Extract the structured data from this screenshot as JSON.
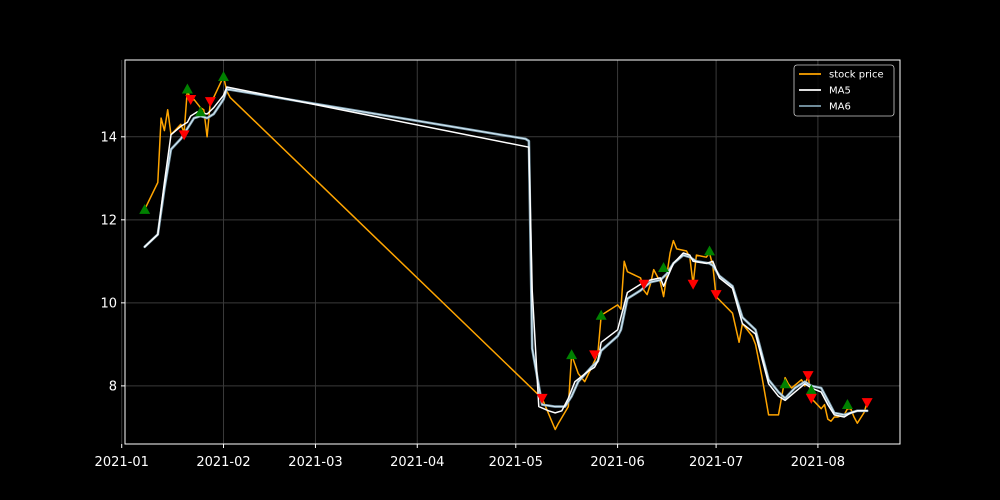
{
  "colors": {
    "background": "#000000",
    "axes": "#ffffff",
    "grid": "#3a3a3a",
    "price": "#ffa500",
    "ma5": "#ffffff",
    "ma6": "#7f9faf",
    "ma6_inner": "#d8ecf8",
    "buy_marker": "#008000",
    "sell_marker": "#ff0000"
  },
  "chart_data": {
    "type": "line",
    "title": "",
    "xlabel": "",
    "ylabel": "",
    "grid": true,
    "legend_position": "top-right",
    "x_axis": {
      "type": "date",
      "range": [
        "2021-01-02",
        "2021-08-26"
      ],
      "ticks": [
        "2021-01-01",
        "2021-02-01",
        "2021-03-01",
        "2021-04-01",
        "2021-05-01",
        "2021-06-01",
        "2021-07-01",
        "2021-08-01"
      ],
      "tick_labels": [
        "2021-01",
        "2021-02",
        "2021-03",
        "2021-04",
        "2021-05",
        "2021-06",
        "2021-07",
        "2021-08"
      ]
    },
    "y_axis": {
      "range": [
        6.6,
        15.85
      ],
      "ticks": [
        8,
        10,
        12,
        14
      ],
      "tick_labels": [
        "8",
        "10",
        "12",
        "14"
      ]
    },
    "legend": [
      {
        "label": "stock price",
        "series": "price"
      },
      {
        "label": "MA5",
        "series": "ma5"
      },
      {
        "label": "MA6",
        "series": "ma6"
      }
    ],
    "series": [
      {
        "id": "price",
        "name": "stock price",
        "points": [
          [
            "2021-01-08",
            12.25
          ],
          [
            "2021-01-12",
            12.9
          ],
          [
            "2021-01-13",
            14.45
          ],
          [
            "2021-01-14",
            14.15
          ],
          [
            "2021-01-15",
            14.65
          ],
          [
            "2021-01-16",
            14.05
          ],
          [
            "2021-01-19",
            14.3
          ],
          [
            "2021-01-20",
            14.1
          ],
          [
            "2021-01-21",
            15.15
          ],
          [
            "2021-01-22",
            14.85
          ],
          [
            "2021-01-23",
            14.9
          ],
          [
            "2021-01-25",
            14.7
          ],
          [
            "2021-01-26",
            14.65
          ],
          [
            "2021-01-27",
            14.0
          ],
          [
            "2021-01-28",
            14.85
          ],
          [
            "2021-01-29",
            14.95
          ],
          [
            "2021-02-01",
            15.45
          ],
          [
            "2021-02-02",
            15.1
          ],
          [
            "2021-02-03",
            14.95
          ],
          [
            "2021-05-09",
            7.7
          ],
          [
            "2021-05-13",
            6.95
          ],
          [
            "2021-05-14",
            7.1
          ],
          [
            "2021-05-17",
            7.5
          ],
          [
            "2021-05-18",
            8.75
          ],
          [
            "2021-05-20",
            8.3
          ],
          [
            "2021-05-22",
            8.1
          ],
          [
            "2021-05-25",
            8.6
          ],
          [
            "2021-05-26",
            8.8
          ],
          [
            "2021-05-27",
            9.7
          ],
          [
            "2021-06-01",
            9.95
          ],
          [
            "2021-06-02",
            9.85
          ],
          [
            "2021-06-03",
            11.0
          ],
          [
            "2021-06-04",
            10.75
          ],
          [
            "2021-06-08",
            10.6
          ],
          [
            "2021-06-09",
            10.3
          ],
          [
            "2021-06-10",
            10.2
          ],
          [
            "2021-06-11",
            10.45
          ],
          [
            "2021-06-12",
            10.8
          ],
          [
            "2021-06-14",
            10.5
          ],
          [
            "2021-06-15",
            10.15
          ],
          [
            "2021-06-17",
            11.2
          ],
          [
            "2021-06-18",
            11.5
          ],
          [
            "2021-06-19",
            11.3
          ],
          [
            "2021-06-22",
            11.25
          ],
          [
            "2021-06-23",
            11.1
          ],
          [
            "2021-06-24",
            10.45
          ],
          [
            "2021-06-25",
            11.15
          ],
          [
            "2021-06-28",
            11.1
          ],
          [
            "2021-06-29",
            11.2
          ],
          [
            "2021-06-30",
            10.9
          ],
          [
            "2021-07-01",
            10.15
          ],
          [
            "2021-07-06",
            9.75
          ],
          [
            "2021-07-08",
            9.05
          ],
          [
            "2021-07-09",
            9.5
          ],
          [
            "2021-07-12",
            9.2
          ],
          [
            "2021-07-13",
            9.0
          ],
          [
            "2021-07-15",
            8.2
          ],
          [
            "2021-07-17",
            7.3
          ],
          [
            "2021-07-20",
            7.3
          ],
          [
            "2021-07-21",
            7.75
          ],
          [
            "2021-07-22",
            8.2
          ],
          [
            "2021-07-23",
            8.05
          ],
          [
            "2021-07-24",
            7.95
          ],
          [
            "2021-07-27",
            8.15
          ],
          [
            "2021-07-28",
            8.0
          ],
          [
            "2021-07-29",
            8.25
          ],
          [
            "2021-07-30",
            7.7
          ],
          [
            "2021-08-02",
            7.45
          ],
          [
            "2021-08-03",
            7.55
          ],
          [
            "2021-08-04",
            7.2
          ],
          [
            "2021-08-05",
            7.15
          ],
          [
            "2021-08-06",
            7.25
          ],
          [
            "2021-08-07",
            7.25
          ],
          [
            "2021-08-09",
            7.3
          ],
          [
            "2021-08-10",
            7.45
          ],
          [
            "2021-08-11",
            7.45
          ],
          [
            "2021-08-12",
            7.25
          ],
          [
            "2021-08-13",
            7.1
          ],
          [
            "2021-08-15",
            7.35
          ],
          [
            "2021-08-16",
            7.6
          ]
        ]
      },
      {
        "id": "ma6",
        "name": "MA6",
        "points": [
          [
            "2021-01-08",
            11.35
          ],
          [
            "2021-01-12",
            11.65
          ],
          [
            "2021-01-14",
            12.75
          ],
          [
            "2021-01-16",
            13.7
          ],
          [
            "2021-01-19",
            13.95
          ],
          [
            "2021-01-21",
            14.2
          ],
          [
            "2021-01-23",
            14.45
          ],
          [
            "2021-01-25",
            14.5
          ],
          [
            "2021-01-27",
            14.45
          ],
          [
            "2021-01-29",
            14.55
          ],
          [
            "2021-02-01",
            14.9
          ],
          [
            "2021-02-02",
            15.15
          ],
          [
            "2021-05-04",
            13.95
          ],
          [
            "2021-05-05",
            13.9
          ],
          [
            "2021-05-06",
            8.9
          ],
          [
            "2021-05-09",
            7.55
          ],
          [
            "2021-05-13",
            7.5
          ],
          [
            "2021-05-16",
            7.5
          ],
          [
            "2021-05-18",
            7.75
          ],
          [
            "2021-05-20",
            8.1
          ],
          [
            "2021-05-24",
            8.45
          ],
          [
            "2021-05-26",
            8.6
          ],
          [
            "2021-05-27",
            8.85
          ],
          [
            "2021-06-01",
            9.2
          ],
          [
            "2021-06-02",
            9.35
          ],
          [
            "2021-06-04",
            10.1
          ],
          [
            "2021-06-08",
            10.3
          ],
          [
            "2021-06-11",
            10.5
          ],
          [
            "2021-06-14",
            10.55
          ],
          [
            "2021-06-16",
            10.7
          ],
          [
            "2021-06-18",
            10.95
          ],
          [
            "2021-06-21",
            11.15
          ],
          [
            "2021-06-23",
            11.1
          ],
          [
            "2021-06-25",
            11.0
          ],
          [
            "2021-06-29",
            10.95
          ],
          [
            "2021-06-30",
            10.9
          ],
          [
            "2021-07-02",
            10.65
          ],
          [
            "2021-07-06",
            10.4
          ],
          [
            "2021-07-09",
            9.65
          ],
          [
            "2021-07-13",
            9.35
          ],
          [
            "2021-07-17",
            8.15
          ],
          [
            "2021-07-20",
            7.85
          ],
          [
            "2021-07-22",
            7.7
          ],
          [
            "2021-07-25",
            7.95
          ],
          [
            "2021-07-28",
            8.1
          ],
          [
            "2021-07-30",
            8.0
          ],
          [
            "2021-08-02",
            7.95
          ],
          [
            "2021-08-04",
            7.65
          ],
          [
            "2021-08-06",
            7.35
          ],
          [
            "2021-08-09",
            7.3
          ],
          [
            "2021-08-11",
            7.35
          ],
          [
            "2021-08-13",
            7.4
          ],
          [
            "2021-08-16",
            7.4
          ]
        ]
      },
      {
        "id": "ma5",
        "name": "MA5",
        "points": [
          [
            "2021-01-08",
            11.35
          ],
          [
            "2021-01-12",
            11.65
          ],
          [
            "2021-01-14",
            12.9
          ],
          [
            "2021-01-16",
            14.05
          ],
          [
            "2021-01-19",
            14.25
          ],
          [
            "2021-01-21",
            14.35
          ],
          [
            "2021-01-22",
            14.5
          ],
          [
            "2021-01-24",
            14.6
          ],
          [
            "2021-01-27",
            14.55
          ],
          [
            "2021-01-29",
            14.7
          ],
          [
            "2021-02-01",
            15.0
          ],
          [
            "2021-02-02",
            15.2
          ],
          [
            "2021-05-05",
            13.75
          ],
          [
            "2021-05-06",
            10.3
          ],
          [
            "2021-05-08",
            7.5
          ],
          [
            "2021-05-11",
            7.4
          ],
          [
            "2021-05-13",
            7.35
          ],
          [
            "2021-05-15",
            7.4
          ],
          [
            "2021-05-17",
            7.7
          ],
          [
            "2021-05-19",
            8.1
          ],
          [
            "2021-05-23",
            8.35
          ],
          [
            "2021-05-25",
            8.45
          ],
          [
            "2021-05-26",
            8.6
          ],
          [
            "2021-05-27",
            9.05
          ],
          [
            "2021-06-01",
            9.35
          ],
          [
            "2021-06-04",
            10.25
          ],
          [
            "2021-06-08",
            10.45
          ],
          [
            "2021-06-11",
            10.55
          ],
          [
            "2021-06-14",
            10.6
          ],
          [
            "2021-06-15",
            10.4
          ],
          [
            "2021-06-18",
            10.95
          ],
          [
            "2021-06-21",
            11.2
          ],
          [
            "2021-06-23",
            11.15
          ],
          [
            "2021-06-24",
            11.0
          ],
          [
            "2021-06-28",
            10.95
          ],
          [
            "2021-06-30",
            11.0
          ],
          [
            "2021-07-02",
            10.6
          ],
          [
            "2021-07-06",
            10.35
          ],
          [
            "2021-07-09",
            9.5
          ],
          [
            "2021-07-13",
            9.25
          ],
          [
            "2021-07-17",
            8.05
          ],
          [
            "2021-07-20",
            7.75
          ],
          [
            "2021-07-22",
            7.65
          ],
          [
            "2021-07-25",
            7.85
          ],
          [
            "2021-07-28",
            8.05
          ],
          [
            "2021-07-30",
            7.95
          ],
          [
            "2021-08-02",
            7.85
          ],
          [
            "2021-08-04",
            7.55
          ],
          [
            "2021-08-06",
            7.3
          ],
          [
            "2021-08-09",
            7.25
          ],
          [
            "2021-08-11",
            7.35
          ],
          [
            "2021-08-13",
            7.4
          ],
          [
            "2021-08-16",
            7.4
          ]
        ]
      }
    ],
    "markers": {
      "buy": {
        "shape": "triangle-up",
        "color": "#008000",
        "points": [
          [
            "2021-01-08",
            12.25
          ],
          [
            "2021-01-21",
            15.15
          ],
          [
            "2021-01-25",
            14.6
          ],
          [
            "2021-02-01",
            15.45
          ],
          [
            "2021-05-18",
            8.75
          ],
          [
            "2021-05-27",
            9.7
          ],
          [
            "2021-06-15",
            10.85
          ],
          [
            "2021-06-29",
            11.25
          ],
          [
            "2021-07-22",
            8.05
          ],
          [
            "2021-07-30",
            7.9
          ],
          [
            "2021-08-10",
            7.55
          ]
        ]
      },
      "sell": {
        "shape": "triangle-down",
        "color": "#ff0000",
        "points": [
          [
            "2021-01-20",
            14.05
          ],
          [
            "2021-01-22",
            14.9
          ],
          [
            "2021-01-28",
            14.85
          ],
          [
            "2021-05-09",
            7.7
          ],
          [
            "2021-05-25",
            8.75
          ],
          [
            "2021-06-09",
            10.45
          ],
          [
            "2021-06-24",
            10.45
          ],
          [
            "2021-07-01",
            10.2
          ],
          [
            "2021-07-29",
            8.25
          ],
          [
            "2021-07-30",
            7.7
          ],
          [
            "2021-08-16",
            7.6
          ]
        ]
      }
    }
  }
}
